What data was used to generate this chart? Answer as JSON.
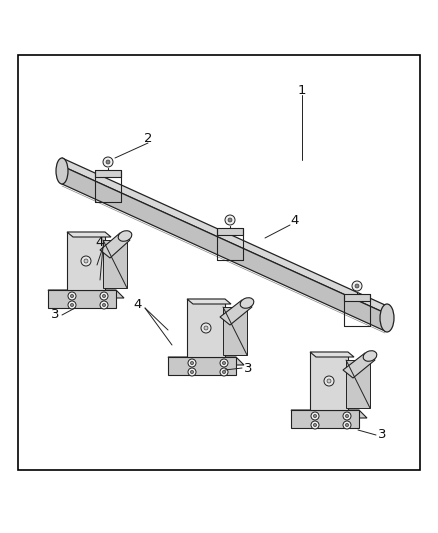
{
  "bg_color": "#ffffff",
  "border_color": "#000000",
  "line_color": "#444444",
  "dark_line": "#222222",
  "fill_light": "#e8e8e8",
  "fill_mid": "#d0d0d0",
  "fill_dark": "#b8b8b8",
  "label_1": "1",
  "label_2": "2",
  "label_3": "3",
  "label_4": "4",
  "figsize": [
    4.38,
    5.33
  ],
  "dpi": 100,
  "border": [
    18,
    55,
    402,
    415
  ]
}
